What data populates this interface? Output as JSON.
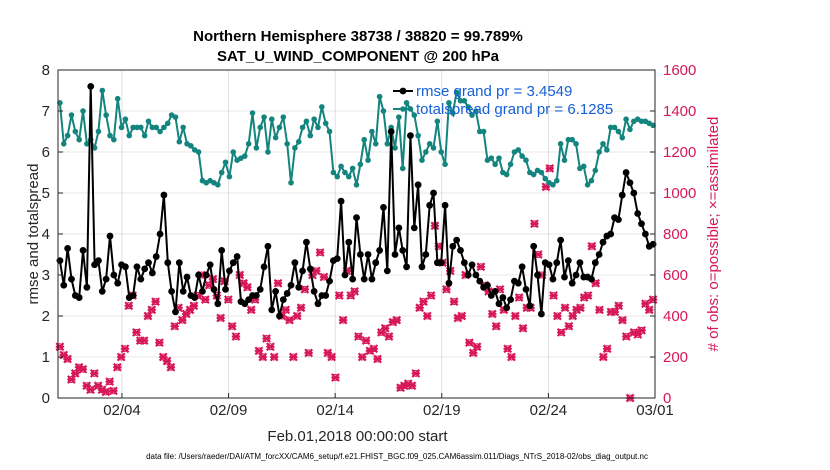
{
  "chart_data": {
    "type": "line",
    "title": [
      "Northern Hemisphere 38738 / 38820 = 99.789%",
      "SAT_U_WIND_COMPONENT @ 200 hPa"
    ],
    "xlabel": "Feb.01,2018 00:00:00 start",
    "ylabel_left": "rmse and totalspread",
    "ylabel_right": "# of obs: o=possible; ×=assimilated",
    "footer": "data file: /Users/raeder/DAI/ATM_forcXX/CAM6_setup/f.e21.FHIST_BGC.f09_025.CAM6assim.011/Diags_NTrS_2018-02/obs_diag_output.nc",
    "x_range_days": [
      0,
      28
    ],
    "x_ticks": [
      {
        "day": 3,
        "label": "02/04"
      },
      {
        "day": 8,
        "label": "02/09"
      },
      {
        "day": 13,
        "label": "02/14"
      },
      {
        "day": 18,
        "label": "02/19"
      },
      {
        "day": 23,
        "label": "02/24"
      },
      {
        "day": 28,
        "label": "03/01"
      }
    ],
    "ylim_left": [
      0,
      8
    ],
    "yticks_left": [
      "0",
      "1",
      "2",
      "3",
      "4",
      "5",
      "6",
      "7",
      "8"
    ],
    "ylim_right": [
      0,
      1600
    ],
    "yticks_right": [
      "0",
      "200",
      "400",
      "600",
      "800",
      "1000",
      "1200",
      "1400",
      "1600"
    ],
    "grid": true,
    "legend_position": "top-right",
    "series": [
      {
        "name": "rmse grand pr = 3.4549",
        "color": "#000000",
        "axis": "left",
        "marker": "asterisk",
        "values": [
          3.35,
          2.75,
          3.65,
          2.9,
          2.5,
          2.45,
          3.6,
          2.7,
          7.6,
          3.25,
          3.35,
          2.6,
          2.9,
          3.95,
          3.0,
          2.8,
          3.25,
          3.2,
          2.45,
          2.5,
          3.2,
          2.9,
          3.15,
          3.3,
          3.05,
          3.45,
          4.0,
          4.95,
          3.3,
          2.6,
          2.1,
          3.3,
          2.6,
          2.95,
          2.5,
          2.45,
          3.0,
          2.6,
          3.0,
          3.25,
          2.65,
          2.3,
          3.6,
          2.65,
          3.1,
          3.3,
          3.45,
          2.35,
          2.3,
          2.4,
          2.5,
          2.5,
          2.65,
          3.2,
          3.7,
          2.15,
          2.6,
          2.0,
          2.4,
          2.55,
          2.75,
          3.3,
          2.7,
          3.1,
          3.8,
          3.15,
          2.6,
          2.3,
          2.5,
          2.5,
          2.85,
          3.35,
          3.4,
          4.8,
          3.0,
          3.8,
          2.9,
          4.4,
          3.5,
          2.9,
          3.5,
          2.9,
          3.3,
          3.6,
          4.65,
          3.1,
          6.5,
          3.5,
          4.15,
          3.6,
          3.2,
          6.4,
          4.15,
          5.2,
          3.2,
          3.5,
          4.7,
          5.0,
          3.3,
          3.3,
          4.7,
          2.8,
          3.7,
          3.85,
          3.6,
          3.3,
          3.0,
          3.25,
          3.0,
          2.85,
          2.7,
          2.75,
          2.5,
          2.6,
          2.3,
          2.45,
          2.2,
          2.4,
          2.85,
          2.8,
          3.2,
          2.65,
          2.25,
          3.7,
          3.0,
          2.05,
          3.3,
          3.25,
          2.9,
          3.3,
          3.85,
          2.95,
          3.35,
          2.8,
          3.0,
          3.3,
          2.95,
          2.95,
          2.9,
          3.3,
          3.5,
          3.8,
          3.95,
          4.0,
          4.4,
          4.35,
          4.95,
          5.5,
          5.25,
          5.0,
          4.5,
          4.25,
          4.0,
          3.7,
          3.75
        ]
      },
      {
        "name": "totalspread grand pr = 6.1285",
        "color": "#13847e",
        "axis": "left",
        "marker": "dot",
        "values": [
          7.2,
          6.2,
          6.4,
          6.9,
          6.5,
          6.3,
          7.0,
          6.2,
          6.3,
          6.1,
          6.5,
          7.5,
          6.9,
          6.4,
          6.3,
          7.3,
          6.6,
          6.8,
          6.4,
          6.6,
          6.6,
          6.6,
          6.4,
          6.75,
          6.6,
          6.6,
          6.5,
          6.6,
          6.7,
          6.9,
          6.85,
          6.25,
          6.6,
          6.2,
          6.15,
          6.05,
          6.0,
          5.3,
          5.25,
          5.3,
          5.25,
          5.2,
          5.5,
          5.75,
          5.4,
          6.0,
          5.8,
          5.85,
          5.9,
          6.2,
          6.95,
          6.1,
          6.6,
          6.85,
          6.0,
          6.8,
          6.35,
          6.6,
          6.85,
          6.2,
          5.25,
          6.1,
          6.25,
          6.6,
          6.75,
          6.4,
          6.8,
          6.6,
          7.1,
          6.7,
          6.5,
          5.5,
          5.4,
          5.65,
          5.5,
          5.4,
          5.6,
          5.2,
          5.7,
          6.3,
          5.8,
          6.5,
          6.2,
          7.35,
          7.0,
          6.2,
          6.6,
          6.1,
          6.85,
          5.6,
          7.2,
          7.05,
          6.9,
          6.4,
          5.8,
          6.0,
          6.2,
          6.1,
          6.75,
          6.0,
          5.7,
          7.2,
          6.95,
          7.45,
          7.25,
          7.25,
          7.1,
          6.9,
          7.0,
          6.5,
          6.5,
          5.8,
          5.85,
          5.7,
          5.85,
          5.5,
          5.45,
          5.7,
          6.0,
          6.05,
          5.9,
          5.8,
          5.5,
          5.45,
          5.55,
          5.5,
          5.35,
          5.25,
          5.2,
          5.3,
          6.2,
          5.8,
          6.3,
          6.3,
          6.2,
          5.6,
          5.65,
          5.2,
          5.3,
          5.55,
          6.0,
          6.2,
          6.05,
          6.6,
          6.6,
          6.5,
          6.35,
          6.8,
          6.55,
          6.75,
          6.8,
          6.75,
          6.75,
          6.7,
          6.65
        ]
      },
      {
        "name": "obs possible",
        "color": "#d6185a",
        "axis": "right",
        "marker": "circle",
        "values": [
          250,
          210,
          190,
          90,
          120,
          150,
          140,
          60,
          40,
          120,
          60,
          40,
          30,
          80,
          35,
          150,
          200,
          240,
          450,
          500,
          320,
          280,
          280,
          400,
          430,
          470,
          270,
          200,
          180,
          150,
          350,
          440,
          380,
          410,
          430,
          450,
          500,
          600,
          480,
          550,
          580,
          500,
          390,
          570,
          480,
          350,
          300,
          600,
          560,
          540,
          430,
          480,
          230,
          200,
          290,
          250,
          200,
          560,
          400,
          430,
          380,
          200,
          400,
          440,
          530,
          220,
          600,
          620,
          710,
          590,
          220,
          200,
          100,
          500,
          380,
          620,
          500,
          520,
          300,
          200,
          280,
          230,
          240,
          190,
          320,
          340,
          300,
          370,
          380,
          50,
          60,
          70,
          60,
          120,
          440,
          470,
          400,
          500,
          840,
          740,
          660,
          530,
          620,
          470,
          390,
          400,
          600,
          270,
          220,
          250,
          640,
          550,
          520,
          410,
          350,
          530,
          430,
          240,
          200,
          400,
          490,
          340,
          440,
          440,
          850,
          700,
          600,
          1030,
          1120,
          500,
          400,
          320,
          440,
          350,
          400,
          430,
          440,
          490,
          500,
          740,
          560,
          430,
          200,
          240,
          420,
          420,
          450,
          380,
          300,
          0,
          320,
          310,
          330,
          460,
          430,
          480
        ]
      },
      {
        "name": "obs assimilated",
        "color": "#d6185a",
        "axis": "right",
        "marker": "cross",
        "values": [
          250,
          210,
          190,
          90,
          120,
          150,
          140,
          60,
          40,
          120,
          60,
          40,
          30,
          80,
          35,
          150,
          200,
          240,
          450,
          500,
          320,
          280,
          280,
          400,
          430,
          470,
          270,
          200,
          180,
          150,
          350,
          440,
          380,
          410,
          430,
          450,
          500,
          600,
          480,
          550,
          580,
          500,
          390,
          570,
          480,
          350,
          300,
          600,
          560,
          540,
          430,
          480,
          230,
          200,
          290,
          250,
          200,
          560,
          400,
          430,
          380,
          200,
          400,
          440,
          530,
          220,
          600,
          620,
          710,
          590,
          220,
          200,
          100,
          500,
          380,
          620,
          500,
          520,
          300,
          200,
          280,
          230,
          240,
          190,
          320,
          340,
          300,
          370,
          380,
          50,
          60,
          70,
          60,
          120,
          440,
          470,
          400,
          500,
          840,
          740,
          660,
          530,
          620,
          470,
          390,
          400,
          600,
          270,
          220,
          250,
          640,
          550,
          520,
          410,
          350,
          530,
          430,
          240,
          200,
          400,
          490,
          340,
          440,
          440,
          850,
          700,
          600,
          1030,
          1120,
          500,
          400,
          320,
          440,
          350,
          400,
          430,
          440,
          490,
          500,
          740,
          560,
          430,
          200,
          240,
          420,
          420,
          450,
          380,
          300,
          0,
          320,
          310,
          330,
          460,
          430,
          480
        ]
      }
    ]
  }
}
